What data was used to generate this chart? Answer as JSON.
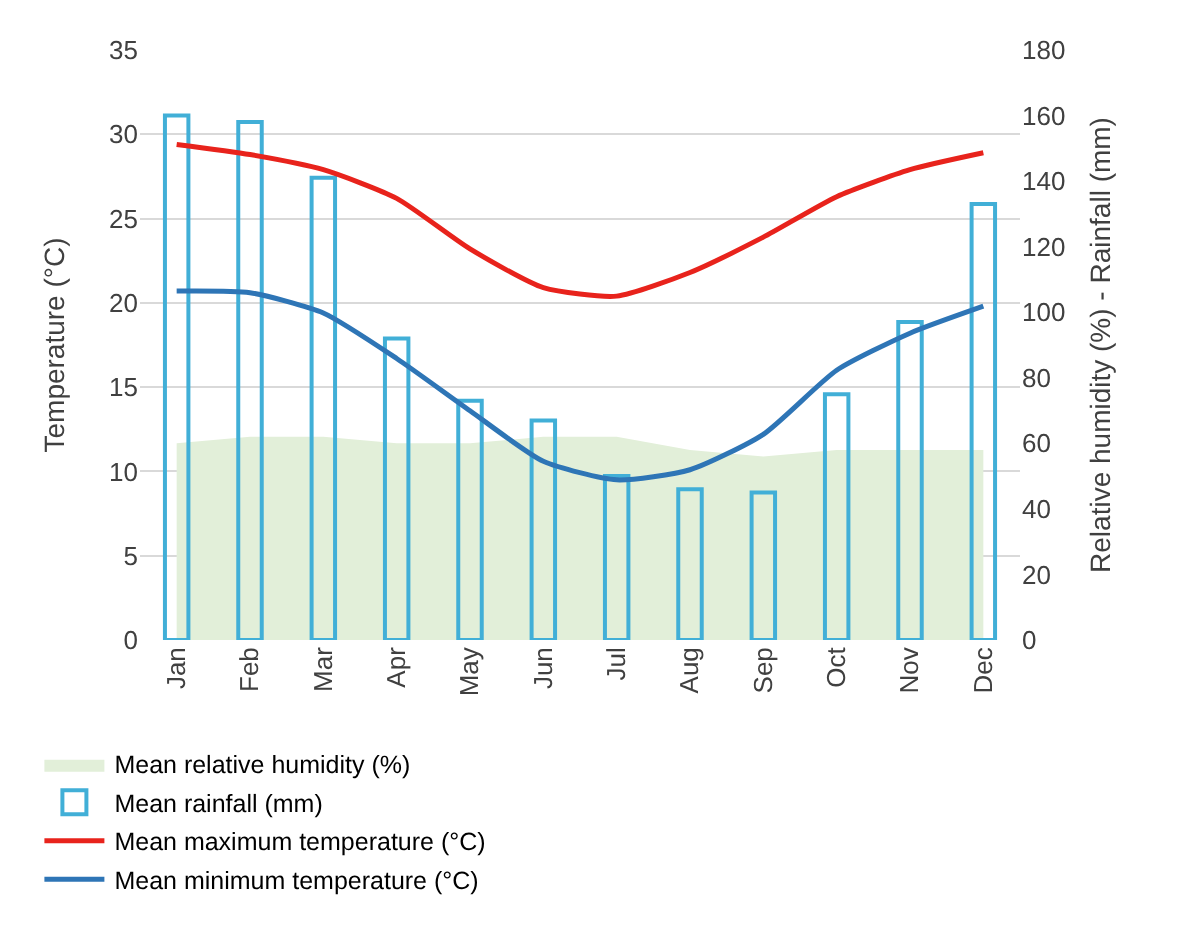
{
  "chart_data": {
    "type": "bar",
    "ylabel": "Temperature (°C)",
    "y2label": "Relative humidity (%) - Rainfall (mm)",
    "categories": [
      "Jan",
      "Feb",
      "Mar",
      "Apr",
      "May",
      "Jun",
      "Jul",
      "Aug",
      "Sep",
      "Oct",
      "Nov",
      "Dec"
    ],
    "series": [
      {
        "name": "Mean relative humidity (%)",
        "type": "area",
        "axis": "y2",
        "color": "#e2efd9",
        "values": [
          60,
          62,
          62,
          60,
          60,
          62,
          62,
          58,
          56,
          58,
          58,
          58
        ]
      },
      {
        "name": "Mean rainfall (mm)",
        "axis": "y2",
        "color": "#41afd7",
        "values": [
          160,
          158,
          141,
          92,
          73,
          67,
          50,
          46,
          45,
          75,
          97,
          133
        ]
      },
      {
        "name": "Mean maximum temperature (°C)",
        "type": "line",
        "color": "#e8231c",
        "values": [
          29.4,
          28.8,
          27.9,
          26.2,
          23.2,
          20.9,
          20.4,
          21.8,
          23.9,
          26.3,
          27.9,
          28.9
        ]
      },
      {
        "name": "Mean minimum temperature (°C)",
        "type": "line",
        "color": "#2e75b6",
        "values": [
          20.7,
          20.6,
          19.4,
          16.7,
          13.6,
          10.6,
          9.5,
          10.1,
          12.2,
          16.0,
          18.2,
          19.8
        ]
      }
    ],
    "ylim": [
      0,
      35
    ],
    "yticks": [
      0,
      5,
      10,
      15,
      20,
      25,
      30,
      35
    ],
    "y2lim": [
      0,
      180
    ],
    "y2ticks": [
      0,
      20,
      40,
      60,
      80,
      100,
      120,
      140,
      160,
      180
    ],
    "grid": "y",
    "legend": "bottom",
    "marker": "none",
    "line_style": "solid"
  }
}
